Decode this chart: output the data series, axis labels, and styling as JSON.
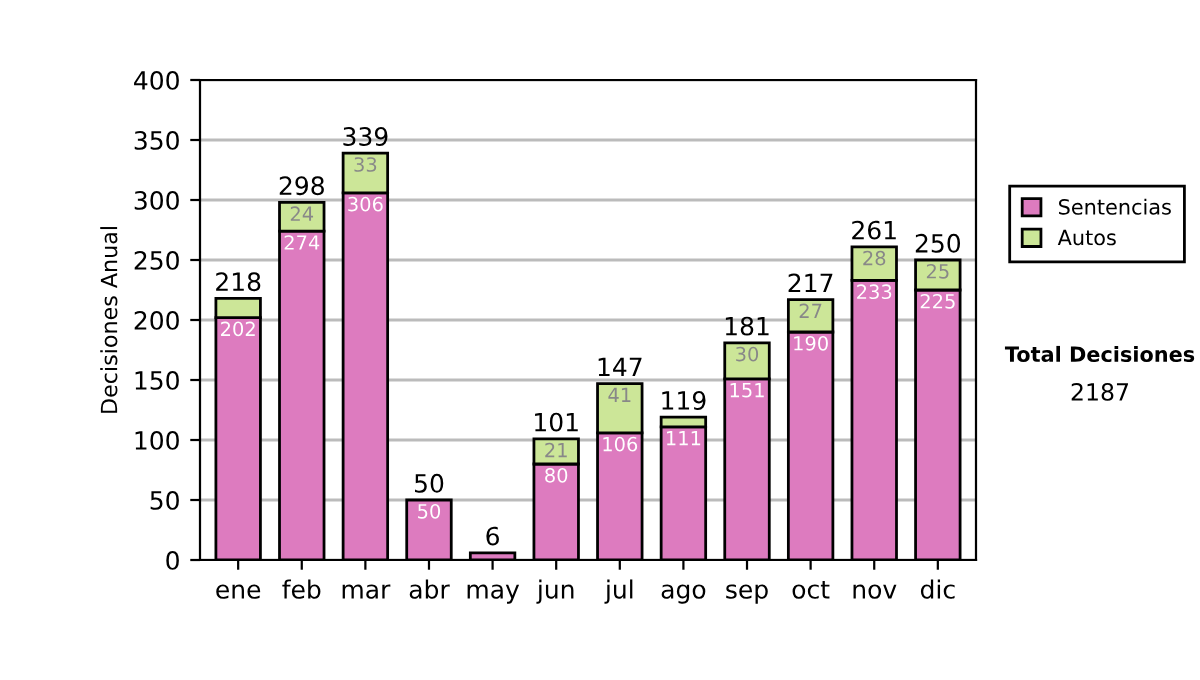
{
  "chart_data": {
    "type": "bar",
    "stacked": true,
    "ylabel": "Decisiones Anual",
    "categories": [
      "ene",
      "feb",
      "mar",
      "abr",
      "may",
      "jun",
      "jul",
      "ago",
      "sep",
      "oct",
      "nov",
      "dic"
    ],
    "series": [
      {
        "name": "Sentencias",
        "color": "#dd7bbf",
        "values": [
          202,
          274,
          306,
          50,
          6,
          80,
          106,
          111,
          151,
          190,
          233,
          225
        ],
        "value_labels": [
          "202",
          "274",
          "306",
          "50",
          null,
          "80",
          "106",
          "111",
          "151",
          "190",
          "233",
          "225"
        ]
      },
      {
        "name": "Autos",
        "color": "#cce698",
        "values": [
          16,
          24,
          33,
          0,
          0,
          21,
          41,
          8,
          30,
          27,
          28,
          25
        ],
        "value_labels": [
          null,
          "24",
          "33",
          null,
          null,
          "21",
          "41",
          null,
          "30",
          "27",
          "28",
          "25"
        ]
      }
    ],
    "totals": [
      "218",
      "298",
      "339",
      "50",
      "6",
      "101",
      "147",
      "119",
      "181",
      "217",
      "261",
      "250"
    ],
    "ylim": [
      0,
      400
    ],
    "yticks": [
      0,
      50,
      100,
      150,
      200,
      250,
      300,
      350,
      400
    ],
    "grid": "y",
    "legend": "right",
    "annotations": [
      "Total Decisiones",
      "2187"
    ]
  }
}
